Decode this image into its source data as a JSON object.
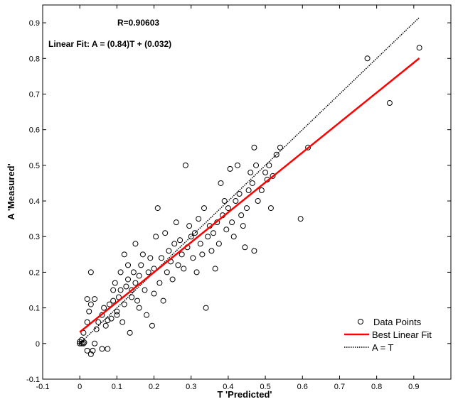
{
  "chart_data": {
    "type": "scatter",
    "title": "",
    "xlabel": "T 'Predicted'",
    "ylabel": "A 'Measured'",
    "xlim": [
      -0.1,
      1.0
    ],
    "ylim": [
      -0.1,
      0.95
    ],
    "xticks": [
      -0.1,
      0,
      0.1,
      0.2,
      0.3,
      0.4,
      0.5,
      0.6,
      0.7,
      0.8,
      0.9
    ],
    "yticks": [
      -0.1,
      0,
      0.1,
      0.2,
      0.3,
      0.4,
      0.5,
      0.6,
      0.7,
      0.8,
      0.9
    ],
    "annotations": [
      "R=0.90603",
      "Linear Fit: A = (0.84)T + (0.032)"
    ],
    "legend_position": "bottom-right",
    "series": [
      {
        "name": "Data Points",
        "kind": "points",
        "marker": "open-circle",
        "color": "#000000",
        "points": [
          [
            0.0,
            0.005
          ],
          [
            0.005,
            0.0
          ],
          [
            0.01,
            0.0
          ],
          [
            0.0,
            0.0
          ],
          [
            0.005,
            0.01
          ],
          [
            0.012,
            0.003
          ],
          [
            0.02,
            -0.02
          ],
          [
            0.03,
            -0.03
          ],
          [
            0.035,
            -0.02
          ],
          [
            0.04,
            0.0
          ],
          [
            0.06,
            -0.015
          ],
          [
            0.075,
            -0.015
          ],
          [
            0.01,
            0.03
          ],
          [
            0.02,
            0.06
          ],
          [
            0.025,
            0.09
          ],
          [
            0.03,
            0.11
          ],
          [
            0.04,
            0.125
          ],
          [
            0.02,
            0.125
          ],
          [
            0.03,
            0.2
          ],
          [
            0.045,
            0.04
          ],
          [
            0.05,
            0.06
          ],
          [
            0.06,
            0.08
          ],
          [
            0.065,
            0.1
          ],
          [
            0.07,
            0.05
          ],
          [
            0.075,
            0.065
          ],
          [
            0.08,
            0.11
          ],
          [
            0.085,
            0.07
          ],
          [
            0.09,
            0.12
          ],
          [
            0.09,
            0.15
          ],
          [
            0.095,
            0.17
          ],
          [
            0.1,
            0.08
          ],
          [
            0.1,
            0.09
          ],
          [
            0.105,
            0.13
          ],
          [
            0.11,
            0.15
          ],
          [
            0.11,
            0.2
          ],
          [
            0.115,
            0.06
          ],
          [
            0.12,
            0.11
          ],
          [
            0.12,
            0.25
          ],
          [
            0.125,
            0.16
          ],
          [
            0.13,
            0.18
          ],
          [
            0.13,
            0.22
          ],
          [
            0.135,
            0.03
          ],
          [
            0.14,
            0.13
          ],
          [
            0.14,
            0.15
          ],
          [
            0.145,
            0.2
          ],
          [
            0.15,
            0.17
          ],
          [
            0.15,
            0.28
          ],
          [
            0.155,
            0.12
          ],
          [
            0.16,
            0.1
          ],
          [
            0.16,
            0.19
          ],
          [
            0.165,
            0.22
          ],
          [
            0.17,
            0.25
          ],
          [
            0.175,
            0.15
          ],
          [
            0.18,
            0.08
          ],
          [
            0.185,
            0.2
          ],
          [
            0.19,
            0.24
          ],
          [
            0.195,
            0.05
          ],
          [
            0.2,
            0.14
          ],
          [
            0.2,
            0.21
          ],
          [
            0.205,
            0.3
          ],
          [
            0.21,
            0.38
          ],
          [
            0.215,
            0.17
          ],
          [
            0.22,
            0.24
          ],
          [
            0.225,
            0.12
          ],
          [
            0.23,
            0.31
          ],
          [
            0.235,
            0.2
          ],
          [
            0.24,
            0.26
          ],
          [
            0.245,
            0.23
          ],
          [
            0.25,
            0.18
          ],
          [
            0.255,
            0.28
          ],
          [
            0.26,
            0.34
          ],
          [
            0.265,
            0.22
          ],
          [
            0.27,
            0.29
          ],
          [
            0.275,
            0.25
          ],
          [
            0.28,
            0.21
          ],
          [
            0.285,
            0.5
          ],
          [
            0.29,
            0.27
          ],
          [
            0.295,
            0.33
          ],
          [
            0.3,
            0.3
          ],
          [
            0.305,
            0.24
          ],
          [
            0.31,
            0.31
          ],
          [
            0.315,
            0.2
          ],
          [
            0.32,
            0.35
          ],
          [
            0.325,
            0.28
          ],
          [
            0.33,
            0.25
          ],
          [
            0.335,
            0.38
          ],
          [
            0.34,
            0.1
          ],
          [
            0.345,
            0.3
          ],
          [
            0.35,
            0.33
          ],
          [
            0.355,
            0.26
          ],
          [
            0.36,
            0.31
          ],
          [
            0.365,
            0.21
          ],
          [
            0.37,
            0.34
          ],
          [
            0.375,
            0.28
          ],
          [
            0.38,
            0.45
          ],
          [
            0.385,
            0.36
          ],
          [
            0.39,
            0.4
          ],
          [
            0.395,
            0.32
          ],
          [
            0.4,
            0.38
          ],
          [
            0.405,
            0.49
          ],
          [
            0.41,
            0.34
          ],
          [
            0.415,
            0.3
          ],
          [
            0.42,
            0.4
          ],
          [
            0.425,
            0.5
          ],
          [
            0.43,
            0.42
          ],
          [
            0.435,
            0.36
          ],
          [
            0.44,
            0.33
          ],
          [
            0.445,
            0.27
          ],
          [
            0.45,
            0.38
          ],
          [
            0.455,
            0.43
          ],
          [
            0.46,
            0.48
          ],
          [
            0.465,
            0.45
          ],
          [
            0.47,
            0.55
          ],
          [
            0.47,
            0.26
          ],
          [
            0.475,
            0.5
          ],
          [
            0.48,
            0.4
          ],
          [
            0.49,
            0.43
          ],
          [
            0.5,
            0.48
          ],
          [
            0.505,
            0.46
          ],
          [
            0.51,
            0.5
          ],
          [
            0.515,
            0.38
          ],
          [
            0.52,
            0.47
          ],
          [
            0.53,
            0.53
          ],
          [
            0.54,
            0.55
          ],
          [
            0.595,
            0.35
          ],
          [
            0.615,
            0.55
          ],
          [
            0.775,
            0.8
          ],
          [
            0.835,
            0.675
          ],
          [
            0.915,
            0.83
          ]
        ]
      },
      {
        "name": "Best Linear Fit",
        "kind": "line",
        "color": "#ff0000",
        "x": [
          0.0,
          0.915
        ],
        "y": [
          0.032,
          0.8006
        ]
      },
      {
        "name": "A = T",
        "kind": "line",
        "color": "#000000",
        "dash": "dotted",
        "x": [
          0.0,
          0.915
        ],
        "y": [
          0.0,
          0.915
        ]
      }
    ]
  }
}
